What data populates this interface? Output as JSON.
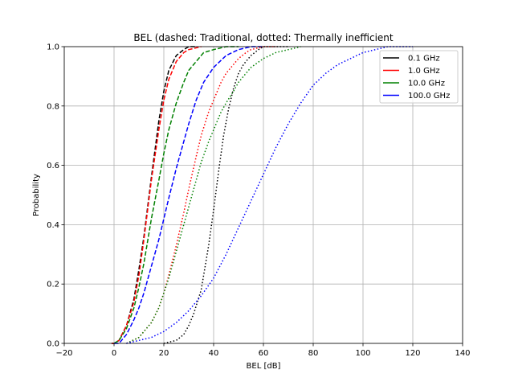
{
  "chart_data": {
    "type": "line",
    "title": "BEL (dashed: Traditional, dotted: Thermally inefficient",
    "xlabel": "BEL [dB]",
    "ylabel": "Probability",
    "xlim": [
      -20,
      140
    ],
    "ylim": [
      0,
      1
    ],
    "xticks": [
      -20,
      0,
      20,
      40,
      60,
      80,
      100,
      120,
      140
    ],
    "xtick_labels": [
      "−20",
      "0",
      "20",
      "40",
      "60",
      "80",
      "100",
      "120",
      "140"
    ],
    "yticks": [
      0,
      0.2,
      0.4,
      0.6,
      0.8,
      1.0
    ],
    "ytick_labels": [
      "0.0",
      "0.2",
      "0.4",
      "0.6",
      "0.8",
      "1.0"
    ],
    "grid": true,
    "legend_position": "top-right",
    "legend": [
      {
        "label": "0.1 GHz",
        "color": "#000000"
      },
      {
        "label": "1.0 GHz",
        "color": "#ff0000"
      },
      {
        "label": "10.0 GHz",
        "color": "#008000"
      },
      {
        "label": "100.0 GHz",
        "color": "#0000ff"
      }
    ],
    "series": [
      {
        "group": "0.1 GHz",
        "color": "#000000",
        "style": "dashed",
        "x": [
          -1,
          0,
          2,
          5,
          8,
          10,
          12,
          15,
          18,
          20,
          22,
          25,
          28,
          30,
          33
        ],
        "y": [
          0.0,
          0.0,
          0.01,
          0.06,
          0.15,
          0.25,
          0.36,
          0.56,
          0.75,
          0.85,
          0.92,
          0.97,
          0.99,
          1.0,
          1.0
        ]
      },
      {
        "group": "1.0 GHz",
        "color": "#ff0000",
        "style": "dashed",
        "x": [
          -1,
          0,
          2,
          5,
          8,
          10,
          12,
          15,
          18,
          20,
          22,
          25,
          28,
          30,
          35
        ],
        "y": [
          0.0,
          0.0,
          0.01,
          0.06,
          0.14,
          0.23,
          0.35,
          0.55,
          0.72,
          0.82,
          0.89,
          0.95,
          0.98,
          0.99,
          1.0
        ]
      },
      {
        "group": "10.0 GHz",
        "color": "#008000",
        "style": "dashed",
        "x": [
          0,
          2,
          5,
          8,
          10,
          12,
          15,
          18,
          20,
          22,
          25,
          28,
          30,
          33,
          36,
          40,
          45,
          50
        ],
        "y": [
          0.0,
          0.01,
          0.05,
          0.12,
          0.19,
          0.27,
          0.42,
          0.55,
          0.64,
          0.72,
          0.81,
          0.88,
          0.92,
          0.95,
          0.98,
          0.99,
          1.0,
          1.0
        ]
      },
      {
        "group": "100.0 GHz",
        "color": "#0000ff",
        "style": "dashed",
        "x": [
          0,
          2,
          5,
          8,
          10,
          12,
          15,
          18,
          20,
          22,
          25,
          28,
          30,
          33,
          36,
          40,
          45,
          50,
          55,
          60
        ],
        "y": [
          0.0,
          0.0,
          0.03,
          0.08,
          0.12,
          0.17,
          0.26,
          0.35,
          0.42,
          0.49,
          0.59,
          0.68,
          0.74,
          0.82,
          0.88,
          0.93,
          0.97,
          0.99,
          1.0,
          1.0
        ]
      },
      {
        "group": "0.1 GHz",
        "color": "#000000",
        "style": "dotted",
        "x": [
          20,
          25,
          28,
          30,
          32,
          35,
          38,
          40,
          42,
          44,
          46,
          48,
          50,
          52,
          55,
          58,
          60,
          65,
          70
        ],
        "y": [
          0.0,
          0.01,
          0.03,
          0.06,
          0.1,
          0.18,
          0.33,
          0.45,
          0.58,
          0.7,
          0.79,
          0.86,
          0.91,
          0.94,
          0.97,
          0.99,
          1.0,
          1.0,
          1.0
        ]
      },
      {
        "group": "1.0 GHz",
        "color": "#ff0000",
        "style": "dotted",
        "x": [
          5,
          10,
          15,
          18,
          20,
          22,
          25,
          28,
          30,
          33,
          35,
          38,
          40,
          43,
          45,
          48,
          50,
          53,
          55,
          60,
          65
        ],
        "y": [
          0.0,
          0.02,
          0.07,
          0.12,
          0.17,
          0.23,
          0.33,
          0.44,
          0.52,
          0.63,
          0.7,
          0.78,
          0.82,
          0.88,
          0.91,
          0.94,
          0.96,
          0.98,
          0.99,
          1.0,
          1.0
        ]
      },
      {
        "group": "10.0 GHz",
        "color": "#008000",
        "style": "dotted",
        "x": [
          5,
          10,
          15,
          18,
          20,
          22,
          25,
          28,
          30,
          33,
          35,
          38,
          40,
          43,
          45,
          48,
          50,
          55,
          60,
          65,
          70,
          75
        ],
        "y": [
          0.0,
          0.02,
          0.07,
          0.12,
          0.17,
          0.22,
          0.31,
          0.4,
          0.46,
          0.55,
          0.61,
          0.68,
          0.72,
          0.78,
          0.81,
          0.85,
          0.88,
          0.93,
          0.96,
          0.98,
          0.99,
          1.0
        ]
      },
      {
        "group": "100.0 GHz",
        "color": "#0000ff",
        "style": "dotted",
        "x": [
          5,
          10,
          15,
          20,
          25,
          30,
          35,
          40,
          45,
          50,
          55,
          60,
          65,
          70,
          75,
          80,
          85,
          90,
          95,
          100,
          105,
          110,
          120
        ],
        "y": [
          0.0,
          0.01,
          0.02,
          0.04,
          0.07,
          0.11,
          0.16,
          0.22,
          0.3,
          0.39,
          0.48,
          0.57,
          0.66,
          0.74,
          0.81,
          0.87,
          0.91,
          0.94,
          0.96,
          0.98,
          0.99,
          1.0,
          1.0
        ]
      }
    ]
  }
}
